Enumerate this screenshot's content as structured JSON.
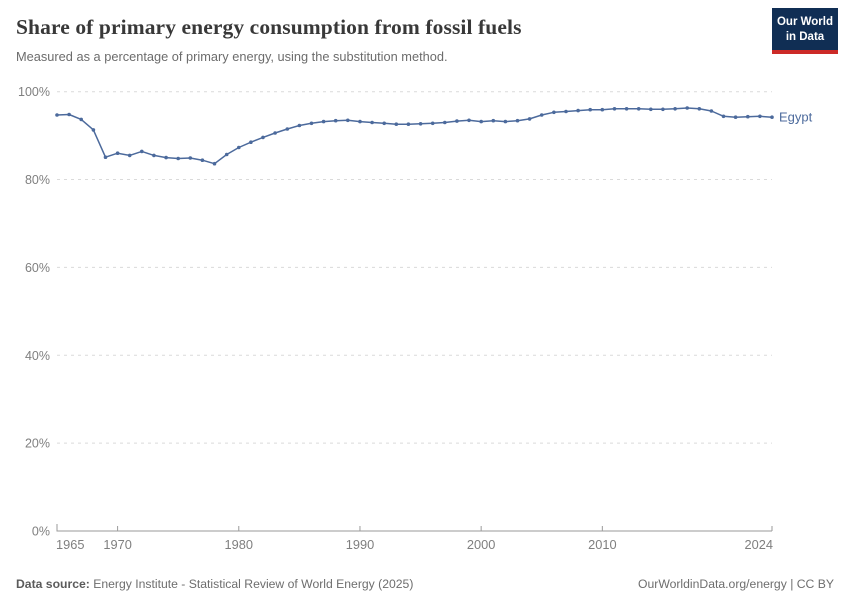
{
  "header": {
    "title": "Share of primary energy consumption from fossil fuels",
    "subtitle": "Measured as a percentage of primary energy, using the substitution method."
  },
  "logo": {
    "line1": "Our World",
    "line2": "in Data",
    "bg_color": "#102e54",
    "accent_color": "#cc2a27"
  },
  "chart_data": {
    "type": "line",
    "title": "Share of primary energy consumption from fossil fuels",
    "xlabel": "",
    "ylabel": "",
    "xlim": [
      1965,
      2024
    ],
    "ylim": [
      0,
      100
    ],
    "x_ticks": [
      1965,
      1970,
      1980,
      1990,
      2000,
      2010,
      2024
    ],
    "y_ticks": [
      0,
      20,
      40,
      60,
      80,
      100
    ],
    "y_tick_suffix": "%",
    "grid": "horizontal-dashed",
    "legend_position": "line-end-label",
    "series": [
      {
        "name": "Egypt",
        "color": "#4C6A9C",
        "x_start": 1965,
        "x_end": 2024,
        "values": [
          94.7,
          94.8,
          93.7,
          91.3,
          85.1,
          86.0,
          85.5,
          86.4,
          85.5,
          85.0,
          84.8,
          84.9,
          84.4,
          83.6,
          85.7,
          87.3,
          88.5,
          89.6,
          90.6,
          91.5,
          92.3,
          92.8,
          93.2,
          93.4,
          93.5,
          93.2,
          93.0,
          92.8,
          92.6,
          92.6,
          92.7,
          92.8,
          93.0,
          93.3,
          93.5,
          93.2,
          93.4,
          93.2,
          93.4,
          93.8,
          94.7,
          95.3,
          95.5,
          95.7,
          95.9,
          95.9,
          96.1,
          96.1,
          96.1,
          96.0,
          96.0,
          96.1,
          96.3,
          96.1,
          95.6,
          94.4,
          94.2,
          94.3,
          94.4,
          94.2
        ]
      }
    ]
  },
  "footer": {
    "source_label": "Data source:",
    "source_text": " Energy Institute - Statistical Review of World Energy (2025)",
    "credit": "OurWorldinData.org/energy | CC BY"
  }
}
